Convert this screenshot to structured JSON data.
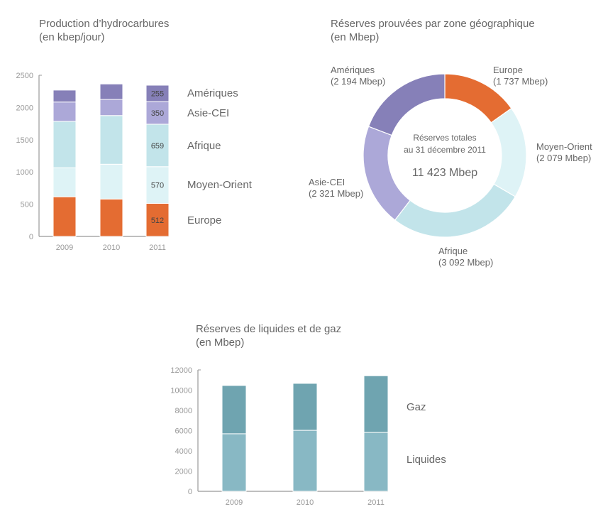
{
  "chart_data": [
    {
      "id": "production",
      "type": "bar",
      "stacked": true,
      "title": "Production d’hydrocarbures",
      "subtitle": "(en kbep/jour)",
      "xlabel": "",
      "ylabel": "",
      "categories": [
        "2009",
        "2010",
        "2011"
      ],
      "ylim": [
        0,
        2500
      ],
      "yticks": [
        0,
        500,
        1000,
        1500,
        2000,
        2500
      ],
      "legend_position": "right",
      "series": [
        {
          "name": "Europe",
          "color": "#e46c32",
          "values": [
            615,
            580,
            512
          ],
          "labels": [
            null,
            null,
            "512"
          ]
        },
        {
          "name": "Moyen-Orient",
          "color": "#def3f6",
          "values": [
            450,
            540,
            570
          ],
          "labels": [
            null,
            null,
            "570"
          ]
        },
        {
          "name": "Afrique",
          "color": "#c2e4ea",
          "values": [
            720,
            755,
            659
          ],
          "labels": [
            null,
            null,
            "659"
          ]
        },
        {
          "name": "Asie-CEI",
          "color": "#aca8d8",
          "values": [
            300,
            250,
            350
          ],
          "labels": [
            null,
            null,
            "350"
          ]
        },
        {
          "name": "Amériques",
          "color": "#8680b8",
          "values": [
            185,
            240,
            255
          ],
          "labels": [
            null,
            null,
            "255"
          ]
        }
      ]
    },
    {
      "id": "reserves-zone",
      "type": "pie",
      "donut": true,
      "title": "Réserves prouvées par zone géographique",
      "subtitle": "(en Mbep)",
      "center_text": [
        "Réserves totales",
        "au 31 décembre 2011"
      ],
      "center_total": "11 423 Mbep",
      "slices": [
        {
          "name": "Europe",
          "value": 1737,
          "label": "(1 737 Mbep)",
          "color": "#e46c32"
        },
        {
          "name": "Moyen-Orient",
          "value": 2079,
          "label": "(2 079 Mbep)",
          "color": "#def3f6"
        },
        {
          "name": "Afrique",
          "value": 3092,
          "label": "(3 092 Mbep)",
          "color": "#c2e4ea"
        },
        {
          "name": "Asie-CEI",
          "value": 2321,
          "label": "(2 321 Mbep)",
          "color": "#aca8d8"
        },
        {
          "name": "Amériques",
          "value": 2194,
          "label": "(2 194 Mbep)",
          "color": "#8680b8"
        }
      ]
    },
    {
      "id": "liquides-gaz",
      "type": "bar",
      "stacked": true,
      "title": "Réserves de liquides et de gaz",
      "subtitle": "(en Mbep)",
      "xlabel": "",
      "ylabel": "",
      "categories": [
        "2009",
        "2010",
        "2011"
      ],
      "ylim": [
        0,
        12000
      ],
      "yticks": [
        0,
        2000,
        4000,
        6000,
        8000,
        10000,
        12000
      ],
      "legend_position": "right",
      "series": [
        {
          "name": "Liquides",
          "color": "#88b8c4",
          "values": [
            5690,
            6030,
            5820
          ]
        },
        {
          "name": "Gaz",
          "color": "#6fa4b0",
          "values": [
            4770,
            4640,
            5603
          ]
        }
      ]
    }
  ]
}
